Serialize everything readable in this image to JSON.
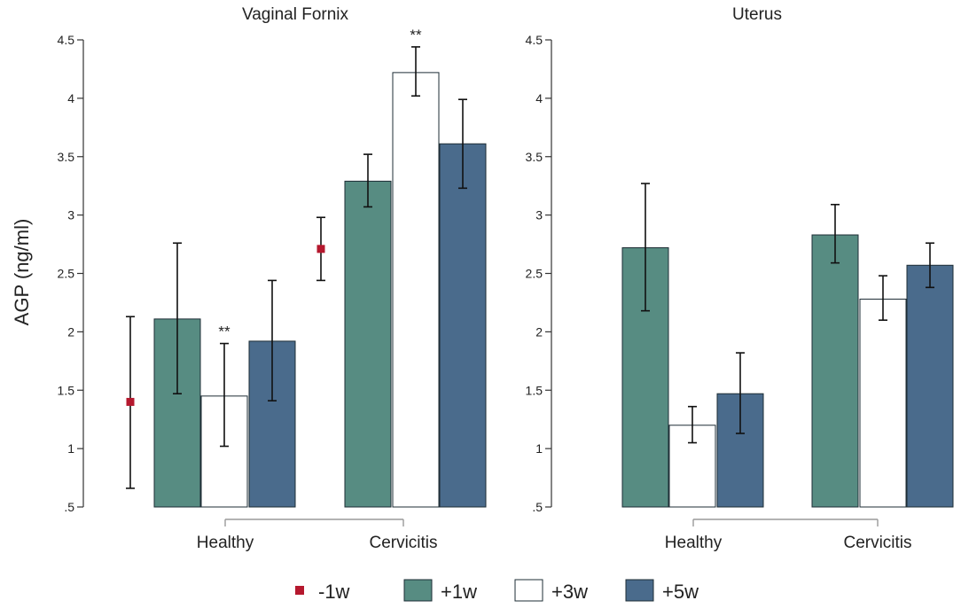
{
  "y_axis_label": "AGP (ng/ml)",
  "colors": {
    "pre_marker": "#b5182e",
    "plus1w": "#578c82",
    "plus3w": "#ffffff",
    "plus5w": "#4a6b8c",
    "bar_stroke": "#1e2d35",
    "axis": "#333333",
    "bracket": "#9a9a9a"
  },
  "legend": [
    {
      "key": "pre",
      "label": "-1w"
    },
    {
      "key": "plus1w",
      "label": "+1w"
    },
    {
      "key": "plus3w",
      "label": "+3w"
    },
    {
      "key": "plus5w",
      "label": "+5w"
    }
  ],
  "chart_data": [
    {
      "type": "bar",
      "title": "Vaginal Fornix",
      "ylabel": "AGP (ng/ml)",
      "ylim": [
        0.5,
        4.5
      ],
      "yticks": [
        {
          "value": 0.5,
          "label": ".5"
        },
        {
          "value": 1,
          "label": "1"
        },
        {
          "value": 1.5,
          "label": "1.5"
        },
        {
          "value": 2,
          "label": "2"
        },
        {
          "value": 2.5,
          "label": "2.5"
        },
        {
          "value": 3,
          "label": "3"
        },
        {
          "value": 3.5,
          "label": "3.5"
        },
        {
          "value": 4,
          "label": "4"
        },
        {
          "value": 4.5,
          "label": "4.5"
        }
      ],
      "categories": [
        "Healthy",
        "Cervicitis"
      ],
      "pre_marker": {
        "name": "-1w",
        "values": [
          1.4,
          2.71
        ],
        "err_low": [
          0.66,
          2.44
        ],
        "err_high": [
          2.13,
          2.98
        ]
      },
      "series": [
        {
          "name": "+1w",
          "values": [
            2.11,
            3.29
          ],
          "err_low": [
            1.47,
            3.07
          ],
          "err_high": [
            2.76,
            3.52
          ]
        },
        {
          "name": "+3w",
          "values": [
            1.45,
            4.22
          ],
          "err_low": [
            1.02,
            4.02
          ],
          "err_high": [
            1.9,
            4.44
          ]
        },
        {
          "name": "+5w",
          "values": [
            1.92,
            3.61
          ],
          "err_low": [
            1.41,
            3.23
          ],
          "err_high": [
            2.44,
            3.99
          ]
        }
      ],
      "annotations": [
        {
          "category": "Healthy",
          "series": "+3w",
          "text": "**"
        },
        {
          "category": "Cervicitis",
          "series": "+3w",
          "text": "**"
        }
      ]
    },
    {
      "type": "bar",
      "title": "Uterus",
      "ylabel": "",
      "ylim": [
        0.5,
        4.5
      ],
      "yticks": [
        {
          "value": 0.5,
          "label": ".5"
        },
        {
          "value": 1,
          "label": "1"
        },
        {
          "value": 1.5,
          "label": "1.5"
        },
        {
          "value": 2,
          "label": "2"
        },
        {
          "value": 2.5,
          "label": "2.5"
        },
        {
          "value": 3,
          "label": "3"
        },
        {
          "value": 3.5,
          "label": "3.5"
        },
        {
          "value": 4,
          "label": "4"
        },
        {
          "value": 4.5,
          "label": "4.5"
        }
      ],
      "categories": [
        "Healthy",
        "Cervicitis"
      ],
      "series": [
        {
          "name": "+1w",
          "values": [
            2.72,
            2.83
          ],
          "err_low": [
            2.18,
            2.59
          ],
          "err_high": [
            3.27,
            3.09
          ]
        },
        {
          "name": "+3w",
          "values": [
            1.2,
            2.28
          ],
          "err_low": [
            1.05,
            2.1
          ],
          "err_high": [
            1.36,
            2.48
          ]
        },
        {
          "name": "+5w",
          "values": [
            1.47,
            2.57
          ],
          "err_low": [
            1.13,
            2.38
          ],
          "err_high": [
            1.82,
            2.76
          ]
        }
      ],
      "annotations": []
    }
  ]
}
